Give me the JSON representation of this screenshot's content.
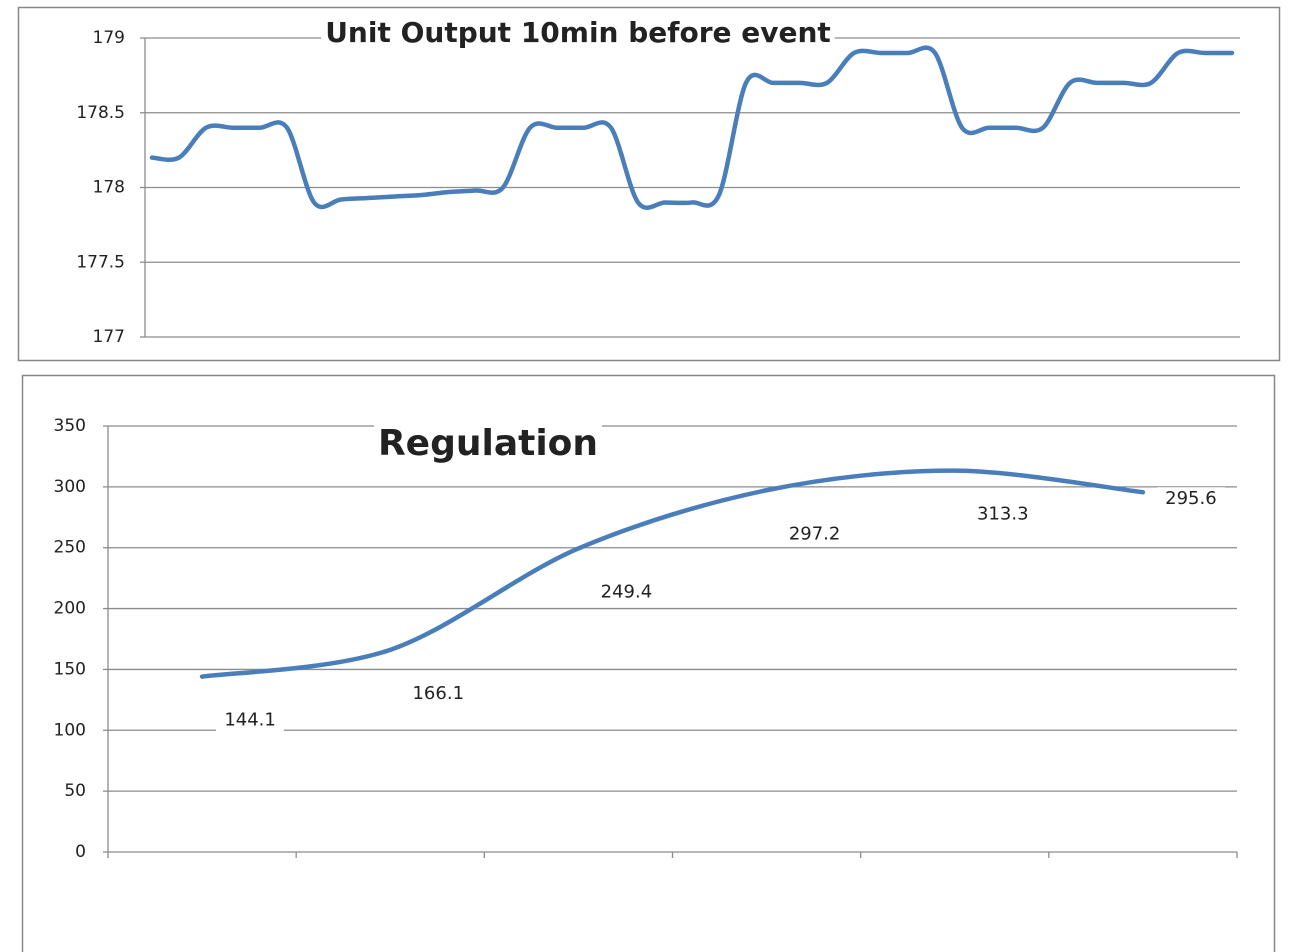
{
  "chart_data": [
    {
      "type": "line",
      "title": "Unit Output 10min before event",
      "color": "#4a7ebb",
      "grid": true,
      "ylim": [
        177,
        179
      ],
      "yticks": [
        177,
        177.5,
        178,
        178.5,
        179
      ],
      "values": [
        178.2,
        178.2,
        178.4,
        178.4,
        178.4,
        178.4,
        177.9,
        177.92,
        177.93,
        177.94,
        177.95,
        177.97,
        177.98,
        178.0,
        178.4,
        178.4,
        178.4,
        178.4,
        177.9,
        177.9,
        177.9,
        177.95,
        178.7,
        178.7,
        178.7,
        178.7,
        178.9,
        178.9,
        178.9,
        178.9,
        178.4,
        178.4,
        178.4,
        178.4,
        178.7,
        178.7,
        178.7,
        178.7,
        178.9,
        178.9,
        178.9
      ]
    },
    {
      "type": "line",
      "title": "Regulation",
      "color": "#4a7ebb",
      "grid": true,
      "data_labels": true,
      "ylim": [
        0,
        350
      ],
      "yticks": [
        0,
        50,
        100,
        150,
        200,
        250,
        300,
        350
      ],
      "values": [
        144.1,
        166.1,
        249.4,
        297.2,
        313.3,
        295.6
      ]
    }
  ]
}
